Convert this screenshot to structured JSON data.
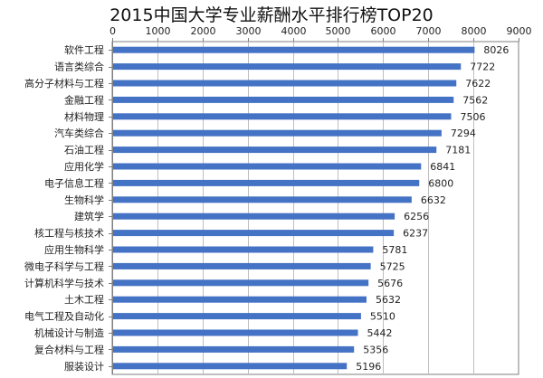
{
  "chart_data": {
    "type": "bar",
    "orientation": "horizontal",
    "title": "2015中国大学专业薪酬水平排行榜TOP20",
    "xlabel": "",
    "ylabel": "",
    "xlim": [
      0,
      9000
    ],
    "xticks": [
      0,
      1000,
      2000,
      3000,
      4000,
      5000,
      6000,
      7000,
      8000,
      9000
    ],
    "axis_position": "top",
    "grid": true,
    "bar_color": "#4472C4",
    "categories": [
      "软件工程",
      "语言类综合",
      "高分子材料与工程",
      "金融工程",
      "材料物理",
      "汽车类综合",
      "石油工程",
      "应用化学",
      "电子信息工程",
      "生物科学",
      "建筑学",
      "核工程与核技术",
      "应用生物科学",
      "微电子科学与工程",
      "计算机科学与技术",
      "土木工程",
      "电气工程及自动化",
      "机械设计与制造",
      "复合材料与工程",
      "服装设计"
    ],
    "values": [
      8026,
      7722,
      7622,
      7562,
      7506,
      7294,
      7181,
      6841,
      6800,
      6632,
      6256,
      6237,
      5781,
      5725,
      5676,
      5632,
      5510,
      5442,
      5356,
      5196
    ]
  }
}
